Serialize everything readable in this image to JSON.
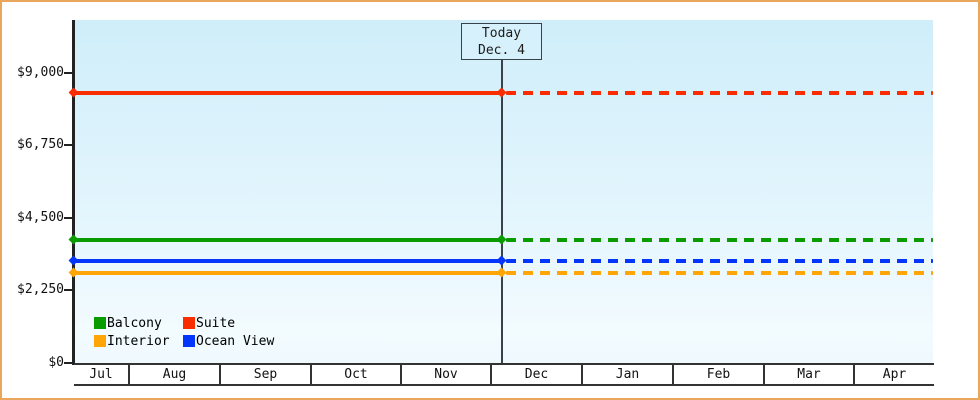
{
  "annotation": {
    "label": "Today",
    "date": "Dec. 4"
  },
  "legend": {
    "position": "bottom-left",
    "order": [
      "Balcony",
      "Suite",
      "Interior",
      "Ocean View"
    ]
  },
  "colors": {
    "frame_border": "#e9a75b",
    "axis": "#222222",
    "today_line": "#39424a"
  },
  "chart_data": {
    "type": "line",
    "x": [
      "Jul",
      "Aug",
      "Sep",
      "Oct",
      "Nov",
      "Dec",
      "Jan",
      "Feb",
      "Mar",
      "Apr"
    ],
    "ylim": [
      0,
      9000
    ],
    "y_ticks": [
      {
        "label": "$9,000",
        "value": 9000
      },
      {
        "label": "$6,750",
        "value": 6750
      },
      {
        "label": "$4,500",
        "value": 4500
      },
      {
        "label": "$2,250",
        "value": 2250
      },
      {
        "label": "$0",
        "value": 0
      }
    ],
    "series": [
      {
        "name": "Suite",
        "color": "#fa2d00",
        "value": 8360,
        "style": "solid before today, dashed after"
      },
      {
        "name": "Balcony",
        "color": "#0a9b00",
        "value": 3800,
        "style": "solid before today, dashed after"
      },
      {
        "name": "Ocean View",
        "color": "#0335fb",
        "value": 3150,
        "style": "solid before today, dashed after"
      },
      {
        "name": "Interior",
        "color": "#ffa506",
        "value": 2775,
        "style": "solid before today, dashed after"
      }
    ],
    "today_marker": "Dec. 4",
    "grid": false,
    "legend_position": "bottom-left"
  }
}
